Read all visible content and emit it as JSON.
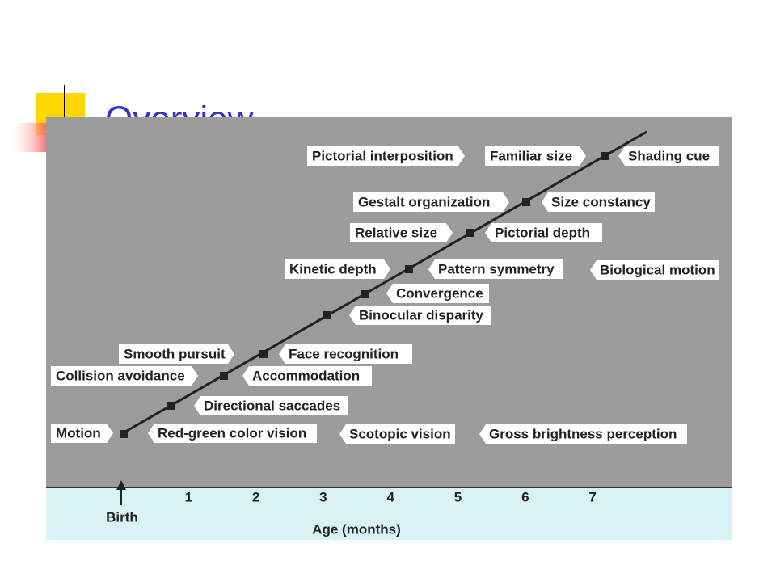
{
  "slide": {
    "title": "Overview"
  },
  "figure": {
    "labels": [
      "Pictorial interposition",
      "Familiar size",
      "Shading cue",
      "Gestalt organization",
      "Size constancy",
      "Relative size",
      "Pictorial depth",
      "Kinetic depth",
      "Pattern symmetry",
      "Biological motion",
      "Convergence",
      "Binocular disparity",
      "Smooth pursuit",
      "Face recognition",
      "Collision avoidance",
      "Accommodation",
      "Directional saccades",
      "Motion",
      "Red-green color vision",
      "Scotopic vision",
      "Gross brightness perception"
    ],
    "axis": {
      "ticks": [
        1,
        2,
        3,
        4,
        5,
        6,
        7
      ],
      "origin_label": "Birth",
      "title": "Age (months)"
    }
  }
}
